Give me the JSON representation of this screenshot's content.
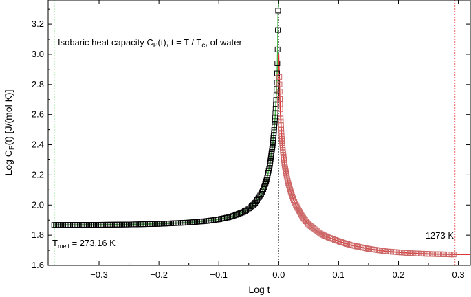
{
  "chart_data": {
    "type": "scatter",
    "title": "",
    "xlabel": "Log t",
    "ylabel": {
      "pre": "Log C",
      "sub": "P",
      "post": "(t) [J/(mol K)]"
    },
    "xlim": [
      -0.385,
      0.32
    ],
    "ylim": [
      1.6,
      3.36
    ],
    "x_ticks": [
      -0.3,
      -0.2,
      -0.1,
      0.0,
      0.1,
      0.2,
      0.3
    ],
    "x_tick_labels": [
      "−0.3",
      "−0.2",
      "−0.1",
      "0.0",
      "0.1",
      "0.2",
      "0.3"
    ],
    "y_ticks": [
      1.6,
      1.8,
      2.0,
      2.2,
      2.4,
      2.6,
      2.8,
      3.0,
      3.2
    ],
    "y_tick_labels": [
      "1.6",
      "1.8",
      "2.0",
      "2.2",
      "2.4",
      "2.6",
      "2.8",
      "3.0",
      "3.2"
    ],
    "grid": false,
    "vertical_reference_lines": [
      {
        "x": -0.3748,
        "color": "#66dd66",
        "style": "dashed"
      },
      {
        "x": 0.0,
        "color": "#555555",
        "style": "dashed"
      },
      {
        "x": 0.2944,
        "color": "#ee6666",
        "style": "dashed"
      }
    ],
    "annotations": {
      "title_text": {
        "pre": "Isobaric heat capacity C",
        "sub1": "P",
        "mid": "(t), t = T / T",
        "sub2": "c",
        "post": ", of water"
      },
      "tmelt": {
        "pre": "T",
        "sub": "melt",
        "post": " = 273.16 K"
      },
      "t_high": "1273 K"
    },
    "series": [
      {
        "side": "low",
        "marker": "open-square",
        "marker_color": "#000000",
        "fit_color": "#44bb44",
        "x": [
          -0.375,
          -0.35,
          -0.3,
          -0.25,
          -0.2,
          -0.15,
          -0.12,
          -0.1,
          -0.08,
          -0.06,
          -0.05,
          -0.04,
          -0.03,
          -0.025,
          -0.02,
          -0.015,
          -0.01,
          -0.008,
          -0.006,
          -0.004,
          -0.003,
          -0.002,
          -0.001
        ],
        "y": [
          1.868,
          1.868,
          1.869,
          1.871,
          1.875,
          1.884,
          1.894,
          1.905,
          1.922,
          1.952,
          1.975,
          2.01,
          2.068,
          2.11,
          2.17,
          2.26,
          2.4,
          2.48,
          2.58,
          2.72,
          2.82,
          2.98,
          3.29
        ]
      },
      {
        "side": "high",
        "marker": "open-square",
        "marker_color": "#cc6666",
        "fit_color": "#dd3333",
        "x": [
          0.001,
          0.002,
          0.003,
          0.005,
          0.007,
          0.01,
          0.015,
          0.02,
          0.025,
          0.03,
          0.04,
          0.05,
          0.06,
          0.07,
          0.08,
          0.1,
          0.12,
          0.15,
          0.18,
          0.2,
          0.22,
          0.25,
          0.28,
          0.2944
        ],
        "y": [
          2.85,
          2.7,
          2.6,
          2.45,
          2.36,
          2.26,
          2.16,
          2.09,
          2.03,
          1.99,
          1.92,
          1.87,
          1.84,
          1.81,
          1.79,
          1.76,
          1.735,
          1.71,
          1.693,
          1.687,
          1.681,
          1.676,
          1.673,
          1.672
        ]
      }
    ]
  }
}
